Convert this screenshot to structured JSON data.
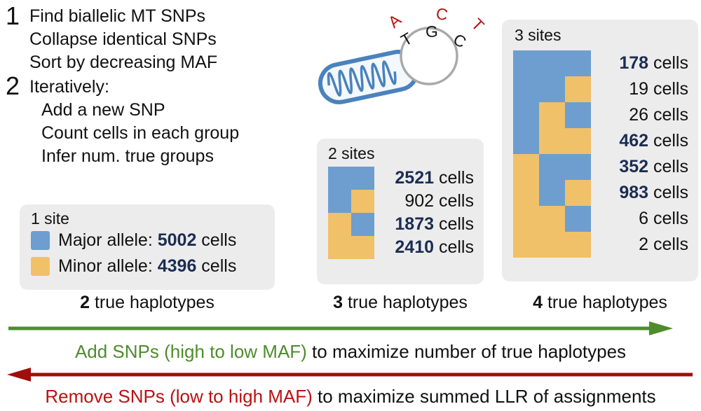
{
  "colors": {
    "blue": "#6d9ecf",
    "orange": "#f0c169",
    "navy": "#1b2d52",
    "ink": "#151515",
    "red": "#bb1111",
    "arrow_red": "#a00d0b",
    "green": "#4e8c2e",
    "panel_bg": "#ececec",
    "mito_blue": "#4a82bd",
    "circle_gray": "#a9a9a9"
  },
  "steps": [
    {
      "number": "1",
      "lines": [
        "Find biallelic MT SNPs",
        "Collapse identical SNPs",
        "Sort by decreasing MAF"
      ]
    },
    {
      "number": "2",
      "intro": "Iteratively:",
      "lines": [
        "Add a new SNP",
        "Count cells in each group",
        "Infer num. true groups"
      ]
    }
  ],
  "mito": {
    "letters": [
      {
        "char": "A",
        "color": "red"
      },
      {
        "char": "C",
        "color": "red"
      },
      {
        "char": "T",
        "color": "red"
      },
      {
        "char": "T",
        "color": "ink"
      },
      {
        "char": "G",
        "color": "ink"
      },
      {
        "char": "C",
        "color": "ink"
      }
    ]
  },
  "panels": [
    {
      "title": "1 site",
      "unit": "cells",
      "legend": [
        {
          "color": "blue",
          "label": "Major allele: ",
          "count": "5002",
          "suffix": " cells"
        },
        {
          "color": "orange",
          "label": "Minor allele: ",
          "count": "4396",
          "suffix": " cells"
        }
      ],
      "caption": {
        "bold": "2",
        "rest": " true haplotypes"
      }
    },
    {
      "title": "2 sites",
      "unit": "cells",
      "rows": [
        {
          "pattern": [
            "blue",
            "blue"
          ],
          "count": "2521",
          "bold": true
        },
        {
          "pattern": [
            "blue",
            "orange"
          ],
          "count": "902",
          "bold": false
        },
        {
          "pattern": [
            "orange",
            "blue"
          ],
          "count": "1873",
          "bold": true
        },
        {
          "pattern": [
            "orange",
            "orange"
          ],
          "count": "2410",
          "bold": true
        }
      ],
      "caption": {
        "bold": "3",
        "rest": " true haplotypes"
      }
    },
    {
      "title": "3 sites",
      "unit": "cells",
      "rows": [
        {
          "pattern": [
            "blue",
            "blue",
            "blue"
          ],
          "count": "178",
          "bold": true
        },
        {
          "pattern": [
            "blue",
            "blue",
            "orange"
          ],
          "count": "19",
          "bold": false
        },
        {
          "pattern": [
            "blue",
            "orange",
            "blue"
          ],
          "count": "26",
          "bold": false
        },
        {
          "pattern": [
            "blue",
            "orange",
            "orange"
          ],
          "count": "462",
          "bold": true
        },
        {
          "pattern": [
            "orange",
            "blue",
            "blue"
          ],
          "count": "352",
          "bold": true
        },
        {
          "pattern": [
            "orange",
            "blue",
            "orange"
          ],
          "count": "983",
          "bold": true
        },
        {
          "pattern": [
            "orange",
            "orange",
            "blue"
          ],
          "count": "6",
          "bold": false
        },
        {
          "pattern": [
            "orange",
            "orange",
            "orange"
          ],
          "count": "2",
          "bold": false
        }
      ],
      "caption": {
        "bold": "4",
        "rest": " true haplotypes"
      }
    }
  ],
  "arrows": {
    "forward": {
      "highlight": "Add SNPs (high to low MAF)",
      "rest": " to maximize number of true haplotypes"
    },
    "backward": {
      "highlight": "Remove SNPs (low to high MAF)",
      "rest": " to maximize summed LLR of assignments"
    }
  }
}
